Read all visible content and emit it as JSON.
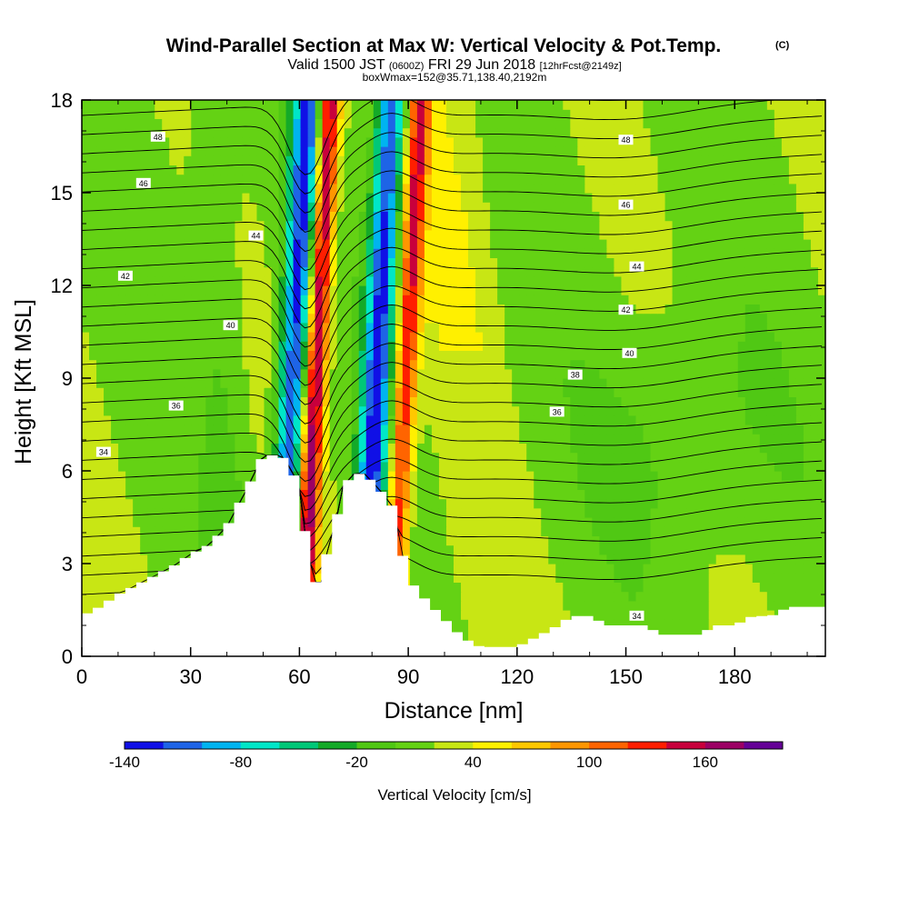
{
  "title": {
    "main": "Wind-Parallel Section at Max W: Vertical Velocity & Pot.Temp.",
    "copyright": "(C)",
    "valid_prefix": "Valid 1500 JST",
    "valid_utc": "(0600Z)",
    "valid_date": "FRI 29 Jun 2018",
    "forecast": "[12hrFcst@2149z]",
    "box": "boxWmax=152@35.71,138.40,2192m"
  },
  "chart_data": {
    "type": "heatmap",
    "xlabel": "Distance [nm]",
    "ylabel": "Height [Kft MSL]",
    "xlim": [
      0,
      205
    ],
    "ylim": [
      0,
      18
    ],
    "x_ticks": [
      "0",
      "30",
      "60",
      "90",
      "120",
      "150",
      "180"
    ],
    "y_ticks": [
      "0",
      "3",
      "6",
      "9",
      "12",
      "15",
      "18"
    ],
    "colorbar": {
      "label": "Vertical Velocity [cm/s]",
      "tick_labels": [
        "-140",
        "-80",
        "-20",
        "40",
        "100",
        "160"
      ],
      "levels": [
        -140,
        -120,
        -100,
        -80,
        -60,
        -40,
        -20,
        0,
        20,
        40,
        60,
        80,
        100,
        120,
        140,
        160
      ],
      "colors": [
        "#1010e6",
        "#1e64e6",
        "#00b4f0",
        "#00e6c8",
        "#00c878",
        "#14aa28",
        "#50c814",
        "#64d214",
        "#c8e614",
        "#fff000",
        "#ffc800",
        "#ff9600",
        "#ff6400",
        "#ff1e00",
        "#c8003c",
        "#9c0064",
        "#640096"
      ]
    },
    "theta_contours": {
      "units": "K (labelled)",
      "labels": [
        "34",
        "36",
        "38",
        "40",
        "42",
        "44",
        "46",
        "48"
      ]
    },
    "terrain_profile": {
      "x_nm": [
        0,
        5,
        10,
        15,
        20,
        25,
        30,
        35,
        40,
        45,
        50,
        55,
        58,
        60,
        62,
        64,
        66,
        68,
        70,
        72,
        75,
        78,
        82,
        86,
        88,
        90,
        95,
        100,
        105,
        110,
        115,
        120,
        125,
        130,
        135,
        140,
        145,
        150,
        155,
        160,
        165,
        170,
        175,
        180,
        185,
        190,
        195,
        200,
        205
      ],
      "height_kft": [
        1.3,
        1.6,
        2.0,
        2.3,
        2.6,
        2.9,
        3.3,
        3.6,
        4.2,
        5.3,
        6.5,
        6.5,
        6.0,
        5.4,
        3.6,
        2.4,
        2.4,
        3.6,
        4.3,
        5.5,
        5.9,
        5.9,
        5.4,
        4.8,
        3.5,
        2.5,
        1.8,
        1.2,
        0.6,
        0.3,
        0.3,
        0.3,
        0.6,
        0.9,
        1.3,
        1.3,
        1.0,
        1.0,
        1.0,
        0.7,
        0.7,
        0.7,
        1.0,
        1.0,
        1.3,
        1.3,
        1.6,
        1.6,
        1.6
      ]
    },
    "w_features": [
      {
        "kind": "downdraft",
        "x_center_nm": 57,
        "peak_cm_s": -140
      },
      {
        "kind": "updraft",
        "x_center_nm": 63,
        "peak_cm_s": 160
      },
      {
        "kind": "downdraft",
        "x_center_nm": 80,
        "peak_cm_s": -140
      },
      {
        "kind": "updraft",
        "x_center_nm": 88,
        "peak_cm_s": 120
      }
    ]
  }
}
